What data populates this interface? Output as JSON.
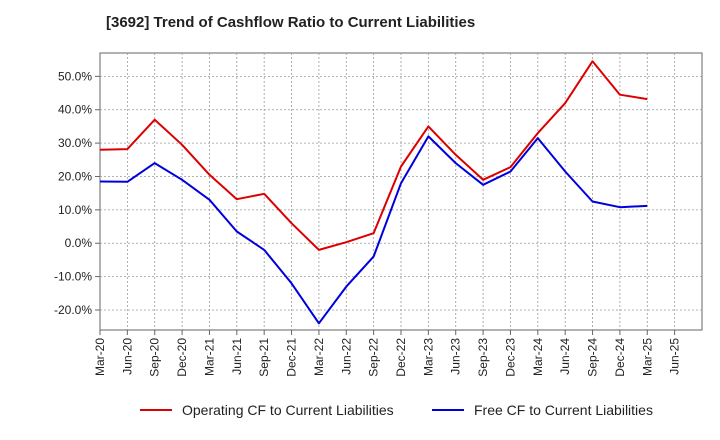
{
  "title": "[3692]  Trend of Cashflow Ratio to Current Liabilities",
  "colors": {
    "operating": "#dd0000",
    "free": "#0000dd",
    "grid": "#999999",
    "axis": "#666666"
  },
  "chart_data": {
    "type": "line",
    "title": "[3692]  Trend of Cashflow Ratio to Current Liabilities",
    "xlabel": "",
    "ylabel": "",
    "ylim": [
      -26,
      57
    ],
    "yticks": [
      -20,
      -10,
      0,
      10,
      20,
      30,
      40,
      50
    ],
    "yticklabels": [
      "-20.0%",
      "-10.0%",
      "0.0%",
      "10.0%",
      "20.0%",
      "30.0%",
      "40.0%",
      "50.0%"
    ],
    "x": [
      "Mar-20",
      "Jun-20",
      "Sep-20",
      "Dec-20",
      "Mar-21",
      "Jun-21",
      "Sep-21",
      "Dec-21",
      "Mar-22",
      "Jun-22",
      "Sep-22",
      "Dec-22",
      "Mar-23",
      "Jun-23",
      "Sep-23",
      "Dec-23",
      "Mar-24",
      "Jun-24",
      "Sep-24",
      "Dec-24",
      "Mar-25",
      "Jun-25"
    ],
    "grid": true,
    "legend_position": "bottom",
    "series": [
      {
        "name": "Operating CF to Current Liabilities",
        "color": "#dd0000",
        "values": [
          28.0,
          28.2,
          37.0,
          29.5,
          20.5,
          13.2,
          14.8,
          6.0,
          -2.0,
          0.3,
          3.0,
          23.0,
          35.0,
          26.5,
          19.0,
          22.8,
          33.0,
          42.0,
          54.5,
          44.5,
          43.2,
          null
        ]
      },
      {
        "name": "Free CF to Current Liabilities",
        "color": "#0000dd",
        "values": [
          18.5,
          18.4,
          24.0,
          19.0,
          13.0,
          3.5,
          -2.0,
          -12.0,
          -24.0,
          -13.0,
          -4.0,
          18.0,
          32.0,
          24.0,
          17.5,
          21.5,
          31.5,
          21.5,
          12.5,
          10.8,
          11.2,
          null
        ]
      }
    ]
  }
}
